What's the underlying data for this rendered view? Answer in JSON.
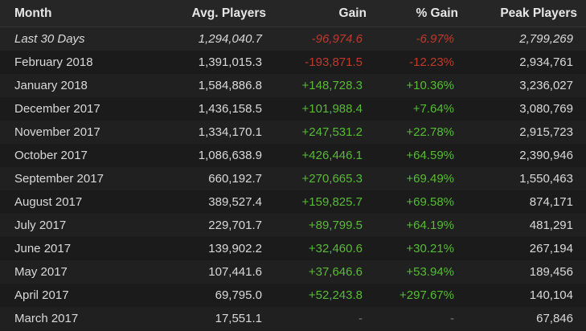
{
  "headers": {
    "month": "Month",
    "avg_players": "Avg. Players",
    "gain": "Gain",
    "pct_gain": "% Gain",
    "peak_players": "Peak Players"
  },
  "colors": {
    "negative": "#c0392b",
    "positive": "#57bb34",
    "neutral": "#7a7a7a"
  },
  "rows": [
    {
      "month": "Last 30 Days",
      "avg": "1,294,040.7",
      "gain": "-96,974.6",
      "pct": "-6.97%",
      "peak": "2,799,269",
      "trend": "neg"
    },
    {
      "month": "February 2018",
      "avg": "1,391,015.3",
      "gain": "-193,871.5",
      "pct": "-12.23%",
      "peak": "2,934,761",
      "trend": "neg"
    },
    {
      "month": "January 2018",
      "avg": "1,584,886.8",
      "gain": "+148,728.3",
      "pct": "+10.36%",
      "peak": "3,236,027",
      "trend": "pos"
    },
    {
      "month": "December 2017",
      "avg": "1,436,158.5",
      "gain": "+101,988.4",
      "pct": "+7.64%",
      "peak": "3,080,769",
      "trend": "pos"
    },
    {
      "month": "November 2017",
      "avg": "1,334,170.1",
      "gain": "+247,531.2",
      "pct": "+22.78%",
      "peak": "2,915,723",
      "trend": "pos"
    },
    {
      "month": "October 2017",
      "avg": "1,086,638.9",
      "gain": "+426,446.1",
      "pct": "+64.59%",
      "peak": "2,390,946",
      "trend": "pos"
    },
    {
      "month": "September 2017",
      "avg": "660,192.7",
      "gain": "+270,665.3",
      "pct": "+69.49%",
      "peak": "1,550,463",
      "trend": "pos"
    },
    {
      "month": "August 2017",
      "avg": "389,527.4",
      "gain": "+159,825.7",
      "pct": "+69.58%",
      "peak": "874,171",
      "trend": "pos"
    },
    {
      "month": "July 2017",
      "avg": "229,701.7",
      "gain": "+89,799.5",
      "pct": "+64.19%",
      "peak": "481,291",
      "trend": "pos"
    },
    {
      "month": "June 2017",
      "avg": "139,902.2",
      "gain": "+32,460.6",
      "pct": "+30.21%",
      "peak": "267,194",
      "trend": "pos"
    },
    {
      "month": "May 2017",
      "avg": "107,441.6",
      "gain": "+37,646.6",
      "pct": "+53.94%",
      "peak": "189,456",
      "trend": "pos"
    },
    {
      "month": "April 2017",
      "avg": "69,795.0",
      "gain": "+52,243.8",
      "pct": "+297.67%",
      "peak": "140,104",
      "trend": "pos"
    },
    {
      "month": "March 2017",
      "avg": "17,551.1",
      "gain": "-",
      "pct": "-",
      "peak": "67,846",
      "trend": "neutral"
    }
  ]
}
